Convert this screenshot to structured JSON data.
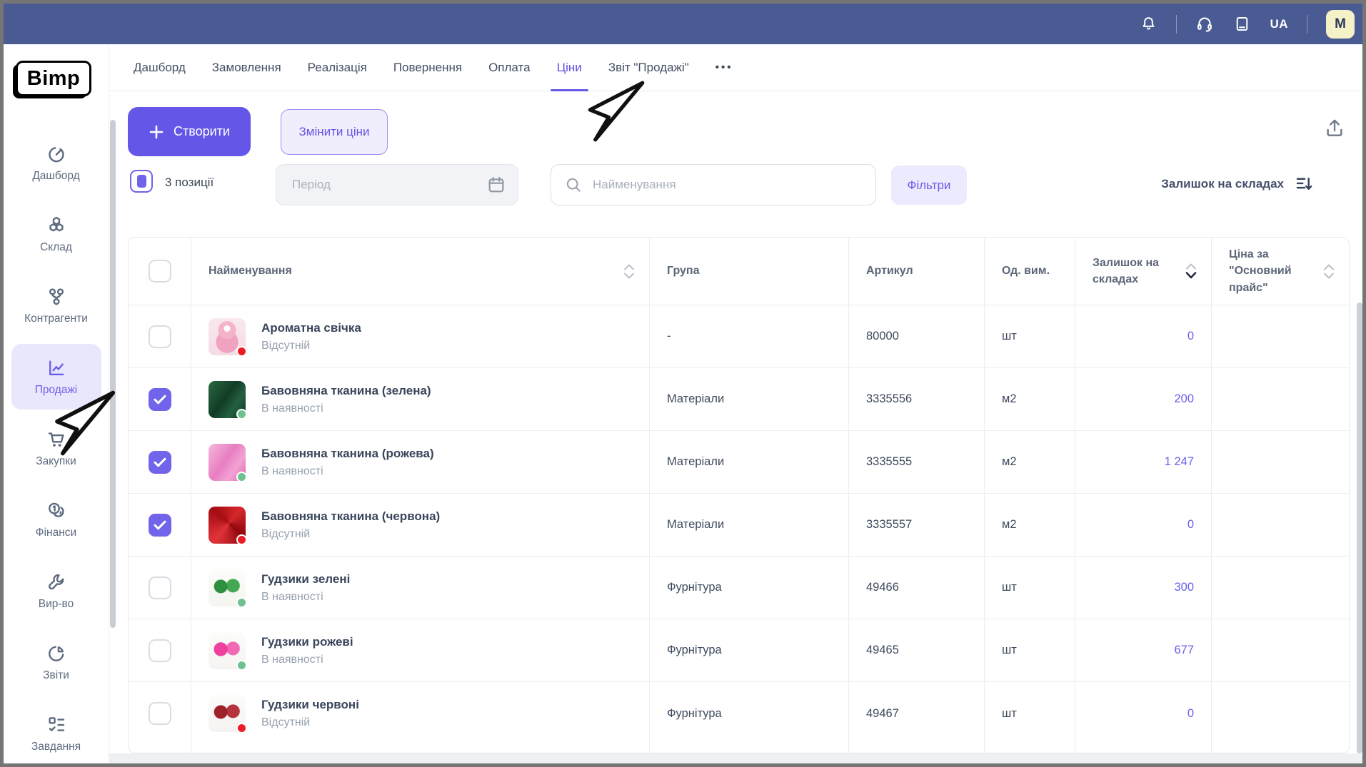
{
  "topbar": {
    "language": "UA",
    "avatar_initial": "M",
    "icons": [
      "bell-icon",
      "headset-icon",
      "book-icon"
    ]
  },
  "sidebar": {
    "logo": "Bimp",
    "items": [
      {
        "id": "dashboard",
        "label": "Дашборд",
        "icon": "gauge",
        "active": false
      },
      {
        "id": "warehouse",
        "label": "Склад",
        "icon": "cubes",
        "active": false
      },
      {
        "id": "contractors",
        "label": "Контрагенти",
        "icon": "network",
        "active": false
      },
      {
        "id": "sales",
        "label": "Продажі",
        "icon": "chart",
        "active": true
      },
      {
        "id": "purchases",
        "label": "Закупки",
        "icon": "cart",
        "active": false
      },
      {
        "id": "finance",
        "label": "Фінанси",
        "icon": "coins",
        "active": false
      },
      {
        "id": "production",
        "label": "Вир-во",
        "icon": "wrench",
        "active": false
      },
      {
        "id": "reports",
        "label": "Звіти",
        "icon": "pie",
        "active": false
      },
      {
        "id": "tasks",
        "label": "Завдання",
        "icon": "tasks",
        "active": false
      }
    ]
  },
  "tabs": {
    "items": [
      {
        "id": "dashboard",
        "label": "Дашборд",
        "active": false
      },
      {
        "id": "orders",
        "label": "Замовлення",
        "active": false
      },
      {
        "id": "realization",
        "label": "Реалізація",
        "active": false
      },
      {
        "id": "returns",
        "label": "Повернення",
        "active": false
      },
      {
        "id": "payment",
        "label": "Оплата",
        "active": false
      },
      {
        "id": "prices",
        "label": "Ціни",
        "active": true
      },
      {
        "id": "sales-report",
        "label": "Звіт \"Продажі\"",
        "active": false
      }
    ],
    "more": "•••"
  },
  "toolbar": {
    "create_label": "Створити",
    "change_prices_label": "Змінити ціни"
  },
  "filters": {
    "selected_count": "3 позиції",
    "period_placeholder": "Період",
    "search_placeholder": "Найменування",
    "filters_button": "Фільтри",
    "sort_label": "Залишок на складах"
  },
  "table": {
    "columns": [
      {
        "label": "Найменування",
        "sortable": true
      },
      {
        "label": "Група",
        "sortable": false
      },
      {
        "label": "Артикул",
        "sortable": false
      },
      {
        "label": "Од. вим.",
        "sortable": false
      },
      {
        "label": "Залишок на складах",
        "sortable": true,
        "sort_active": "desc"
      },
      {
        "label": "Ціна за \"Основний прайс\"",
        "sortable": true
      }
    ],
    "rows": [
      {
        "checked": false,
        "name": "Ароматна свічка",
        "status": "Відсутній",
        "status_color": "red",
        "thumb": "candle",
        "group": "-",
        "sku": "80000",
        "unit": "шт",
        "stock": "0"
      },
      {
        "checked": true,
        "name": "Бавовняна тканина (зелена)",
        "status": "В наявності",
        "status_color": "green",
        "thumb": "fabric-green",
        "group": "Матеріали",
        "sku": "3335556",
        "unit": "м2",
        "stock": "200"
      },
      {
        "checked": true,
        "name": "Бавовняна тканина (рожева)",
        "status": "В наявності",
        "status_color": "green",
        "thumb": "fabric-pink",
        "group": "Матеріали",
        "sku": "3335555",
        "unit": "м2",
        "stock": "1 247"
      },
      {
        "checked": true,
        "name": "Бавовняна тканина (червона)",
        "status": "Відсутній",
        "status_color": "red",
        "thumb": "fabric-red",
        "group": "Матеріали",
        "sku": "3335557",
        "unit": "м2",
        "stock": "0"
      },
      {
        "checked": false,
        "name": "Гудзики зелені",
        "status": "В наявності",
        "status_color": "green",
        "thumb": "buttons-green",
        "group": "Фурнітура",
        "sku": "49466",
        "unit": "шт",
        "stock": "300"
      },
      {
        "checked": false,
        "name": "Гудзики рожеві",
        "status": "В наявності",
        "status_color": "green",
        "thumb": "buttons-pink",
        "group": "Фурнітура",
        "sku": "49465",
        "unit": "шт",
        "stock": "677"
      },
      {
        "checked": false,
        "name": "Гудзики червоні",
        "status": "Відсутній",
        "status_color": "red",
        "thumb": "buttons-red",
        "group": "Фурнітура",
        "sku": "49467",
        "unit": "шт",
        "stock": "0"
      }
    ]
  },
  "colors": {
    "accent_purple": "#6457e8",
    "accent_light": "#e9e7fc",
    "topbar_blue": "#4a5b94",
    "status_green": "#6fc191",
    "status_red": "#ea1d25",
    "avatar_bg": "#f6f2c8"
  }
}
